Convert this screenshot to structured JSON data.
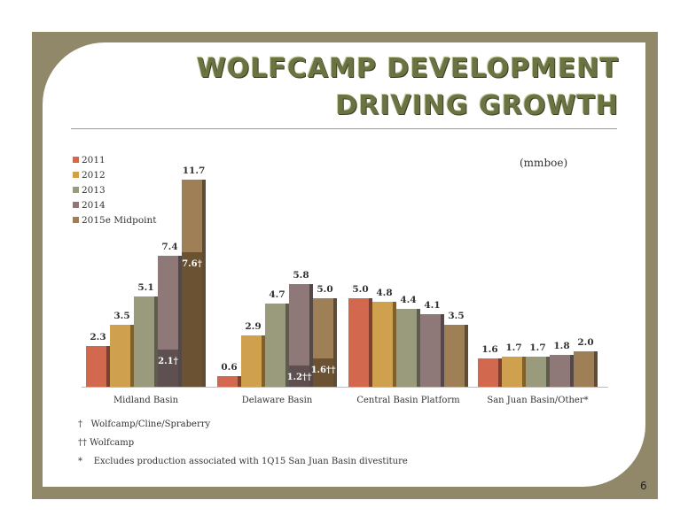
{
  "slide": {
    "title_line1": "WOLFCAMP DEVELOPMENT",
    "title_line2": "DRIVING GROWTH",
    "unit_label": "(mmboe)",
    "page_number": "6"
  },
  "footnotes": [
    "†   Wolfcamp/Cline/Spraberry",
    "†† Wolfcamp",
    "*    Excludes production associated with 1Q15 San Juan Basin divestiture"
  ],
  "chart_data": {
    "type": "bar",
    "categories": [
      "Midland Basin",
      "Delaware Basin",
      "Central Basin Platform",
      "San Juan Basin/Other*"
    ],
    "series": [
      {
        "name": "2011",
        "color": "#d2694f",
        "values": [
          2.3,
          0.6,
          5.0,
          1.6
        ]
      },
      {
        "name": "2012",
        "color": "#cfa04e",
        "values": [
          3.5,
          2.9,
          4.8,
          1.7
        ]
      },
      {
        "name": "2013",
        "color": "#9a9b7c",
        "values": [
          5.1,
          4.7,
          4.4,
          1.7
        ]
      },
      {
        "name": "2014",
        "color": "#8e7878",
        "values": [
          7.4,
          5.8,
          4.1,
          1.8
        ]
      },
      {
        "name": "2015e Midpoint",
        "color": "#9f7f55",
        "values": [
          11.7,
          5.0,
          3.5,
          2.0
        ]
      }
    ],
    "value_labels": [
      [
        "2.3",
        "3.5",
        "5.1",
        "7.4",
        "11.7"
      ],
      [
        "0.6",
        "2.9",
        "4.7",
        "5.8",
        "5.0"
      ],
      [
        "5.0",
        "4.8",
        "4.4",
        "4.1",
        "3.5"
      ],
      [
        "1.6",
        "1.7",
        "1.7",
        "1.8",
        "2.0"
      ]
    ],
    "overlays": [
      {
        "category": 0,
        "series": 3,
        "value": 2.1,
        "label": "2.1†",
        "color": "#5e5050"
      },
      {
        "category": 0,
        "series": 4,
        "value": 7.6,
        "label": "7.6†",
        "color": "#6b5233"
      },
      {
        "category": 1,
        "series": 3,
        "value": 1.2,
        "label": "1.2††",
        "color": "#5e5050"
      },
      {
        "category": 1,
        "series": 4,
        "value": 1.6,
        "label": "1.6††",
        "color": "#6b5233"
      }
    ],
    "ylim": [
      0,
      11.7
    ],
    "grid": false,
    "legend_position": "top-left"
  }
}
